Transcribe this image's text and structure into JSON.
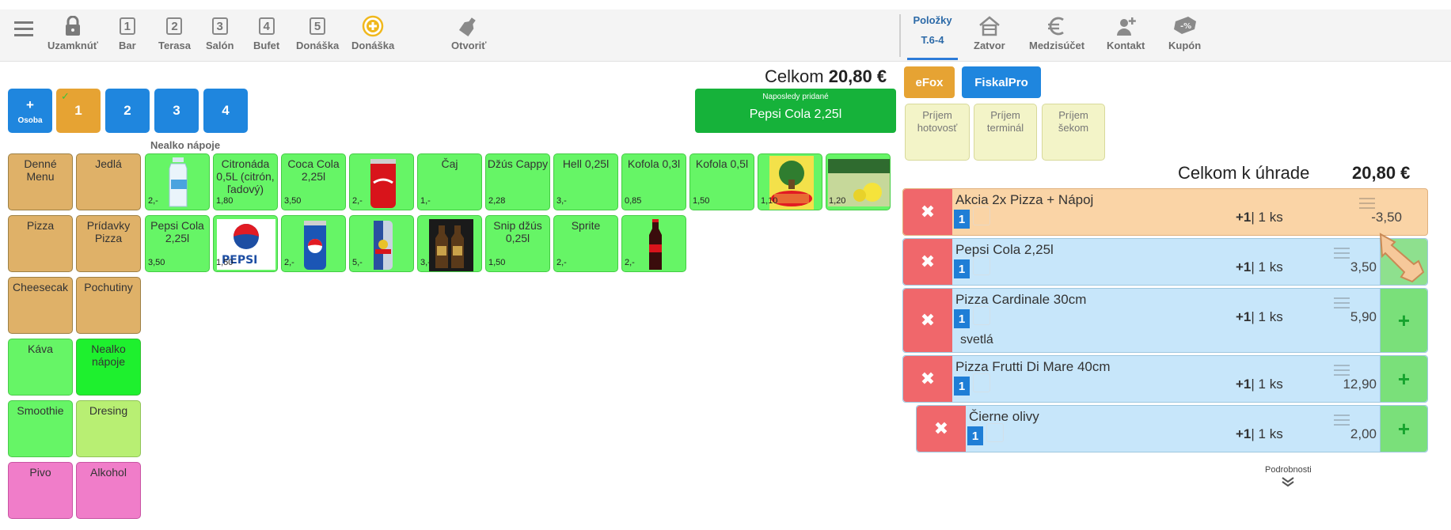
{
  "toolbar": {
    "menu_icon": "hamburger-icon",
    "items": [
      {
        "label": "Uzamknúť",
        "icon": "lock-icon"
      },
      {
        "label": "Bar",
        "icon": "table-1-icon",
        "num": "1"
      },
      {
        "label": "Terasa",
        "icon": "table-2-icon",
        "num": "2"
      },
      {
        "label": "Salón",
        "icon": "table-3-icon",
        "num": "3"
      },
      {
        "label": "Bufet",
        "icon": "table-4-icon",
        "num": "4"
      },
      {
        "label": "Donáška",
        "icon": "table-5-icon",
        "num": "5"
      },
      {
        "label": "Donáška",
        "icon": "add-circle-icon"
      },
      {
        "label": "Otvoriť",
        "icon": "bottle-open-icon"
      }
    ],
    "right": {
      "active_tab": {
        "label": "Položky",
        "sub": "T.6-4"
      },
      "items": [
        {
          "label": "Zatvor",
          "icon": "house-icon"
        },
        {
          "label": "Medzisúčet",
          "icon": "euro-icon"
        },
        {
          "label": "Kontakt",
          "icon": "add-person-icon"
        },
        {
          "label": "Kupón",
          "icon": "coupon-icon"
        }
      ]
    }
  },
  "persons": {
    "add_label": "+",
    "add_sub": "Osoba",
    "numbers": [
      "1",
      "2",
      "3",
      "4"
    ],
    "selected": "1"
  },
  "total": {
    "label": "Celkom",
    "value": "20,80 €"
  },
  "last_added": {
    "caption": "Naposledy pridané",
    "name": "Pepsi Cola 2,25l"
  },
  "group_title": "Nealko nápoje",
  "categories": [
    "Denné Menu",
    "Jedlá",
    "Pizza",
    "Prídavky Pizza",
    "Cheesecak",
    "Pochutiny",
    "Káva",
    "Nealko nápoje",
    "Smoothie",
    "Dresing",
    "Pivo",
    "Alkohol"
  ],
  "products_row1": [
    {
      "name": "",
      "price": "2,-",
      "img": "water-bottle"
    },
    {
      "name": "Citronáda 0,5L (citrón, ľadový)",
      "price": "1,80",
      "img": ""
    },
    {
      "name": "Coca Cola 2,25l",
      "price": "3,50",
      "img": ""
    },
    {
      "name": "",
      "price": "2,-",
      "img": "coke-can"
    },
    {
      "name": "Čaj",
      "price": "1,-",
      "img": ""
    },
    {
      "name": "Džús Cappy",
      "price": "2,28",
      "img": ""
    },
    {
      "name": "Hell 0,25l",
      "price": "3,-",
      "img": ""
    },
    {
      "name": "Kofola 0,3l",
      "price": "0,85",
      "img": ""
    },
    {
      "name": "Kofola 0,5l",
      "price": "1,50",
      "img": ""
    },
    {
      "name": "",
      "price": "1,10",
      "img": "rauch"
    },
    {
      "name": "",
      "price": "1,20",
      "img": "lemon-radler"
    }
  ],
  "products_row2": [
    {
      "name": "Pepsi Cola 2,25l",
      "price": "3,50",
      "img": ""
    },
    {
      "name": "",
      "price": "1,50",
      "img": "pepsi-light"
    },
    {
      "name": "",
      "price": "2,-",
      "img": "pepsi-can"
    },
    {
      "name": "",
      "price": "5,-",
      "img": "redbull-can"
    },
    {
      "name": "",
      "price": "3,-",
      "img": "dark-bottles"
    },
    {
      "name": "Snip džús 0,25l",
      "price": "1,50",
      "img": ""
    },
    {
      "name": "Sprite",
      "price": "2,-",
      "img": ""
    },
    {
      "name": "",
      "price": "2,-",
      "img": "cola-bottle"
    }
  ],
  "payment": {
    "efox": "eFox",
    "fiskal": "FiskalPro",
    "methods": [
      "Príjem hotovosť",
      "Príjem terminál",
      "Príjem šekom"
    ]
  },
  "due": {
    "label": "Celkom k úhrade",
    "value": "20,80 €"
  },
  "orders": [
    {
      "name": "Akcia 2x Pizza + Nápoj",
      "badge": "1",
      "qty_plus": "+1",
      "qty": "1 ks",
      "price": "-3,50",
      "note": ""
    },
    {
      "name": "Pepsi Cola 2,25l",
      "badge": "1",
      "qty_plus": "+1",
      "qty": "1 ks",
      "price": "3,50",
      "note": ""
    },
    {
      "name": "Pizza Cardinale 30cm",
      "badge": "1",
      "qty_plus": "+1",
      "qty": "1 ks",
      "price": "5,90",
      "note": "svetlá"
    },
    {
      "name": "Pizza Frutti Di Mare 40cm",
      "badge": "1",
      "qty_plus": "+1",
      "qty": "1 ks",
      "price": "12,90",
      "note": ""
    },
    {
      "name": "Čierne olivy",
      "badge": "1",
      "qty_plus": "+1",
      "qty": "1 ks",
      "price": "2,00",
      "note": ""
    }
  ],
  "details_label": "Podrobnosti",
  "colors": {
    "accent": "#1f86de",
    "orange": "#e6a333",
    "green": "#16b23a",
    "delete": "#f0676b"
  }
}
